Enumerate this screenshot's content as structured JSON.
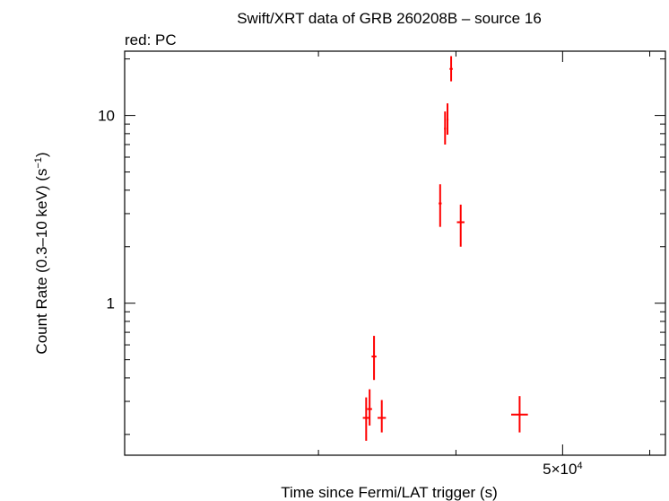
{
  "chart_data": {
    "type": "scatter",
    "title": "Swift/XRT data of GRB 260208B – source 16",
    "subtitle": "red: PC",
    "xlabel": "Time since Fermi/LAT trigger (s)",
    "ylabel": "Count Rate (0.3–10 keV) (s",
    "ylabel_sup": "−1",
    "ylabel_close": ")",
    "x_scale": "log",
    "y_scale": "log",
    "xlim": [
      20000,
      62000
    ],
    "ylim": [
      0.155,
      22
    ],
    "x_tick_labels": [
      {
        "value": 50000,
        "mantissa": "5×10",
        "exponent": "4"
      }
    ],
    "x_ticks_unlabeled": [
      30000,
      40000,
      60000
    ],
    "y_tick_labels": [
      {
        "value": 1,
        "label": "1"
      },
      {
        "value": 10,
        "label": "10"
      }
    ],
    "y_minor_ticks": [
      0.2,
      0.3,
      0.4,
      0.5,
      0.6,
      0.7,
      0.8,
      0.9,
      2,
      3,
      4,
      5,
      6,
      7,
      8,
      9,
      20
    ],
    "grid": false,
    "legend": "none",
    "color": "#ff0000",
    "series": [
      {
        "name": "PC",
        "points": [
          {
            "x": 33150,
            "xerr_lo": 230,
            "xerr_hi": 230,
            "y": 0.245,
            "yerr_lo": 0.06,
            "yerr_hi": 0.07
          },
          {
            "x": 33390,
            "xerr_lo": 170,
            "xerr_hi": 170,
            "y": 0.273,
            "yerr_lo": 0.05,
            "yerr_hi": 0.075
          },
          {
            "x": 33700,
            "xerr_lo": 170,
            "xerr_hi": 170,
            "y": 0.52,
            "yerr_lo": 0.13,
            "yerr_hi": 0.15
          },
          {
            "x": 34250,
            "xerr_lo": 300,
            "xerr_hi": 300,
            "y": 0.245,
            "yerr_lo": 0.04,
            "yerr_hi": 0.06
          },
          {
            "x": 38700,
            "xerr_lo": 120,
            "xerr_hi": 120,
            "y": 3.4,
            "yerr_lo": 0.85,
            "yerr_hi": 0.9
          },
          {
            "x": 39100,
            "xerr_lo": 80,
            "xerr_hi": 80,
            "y": 8.5,
            "yerr_lo": 1.5,
            "yerr_hi": 2.0
          },
          {
            "x": 39300,
            "xerr_lo": 80,
            "xerr_hi": 80,
            "y": 9.5,
            "yerr_lo": 1.6,
            "yerr_hi": 2.1
          },
          {
            "x": 39600,
            "xerr_lo": 130,
            "xerr_hi": 130,
            "y": 17.7,
            "yerr_lo": 2.5,
            "yerr_hi": 3.0
          },
          {
            "x": 40400,
            "xerr_lo": 320,
            "xerr_hi": 320,
            "y": 2.7,
            "yerr_lo": 0.7,
            "yerr_hi": 0.65
          },
          {
            "x": 45700,
            "xerr_lo": 800,
            "xerr_hi": 800,
            "y": 0.255,
            "yerr_lo": 0.05,
            "yerr_hi": 0.065
          }
        ]
      }
    ]
  }
}
